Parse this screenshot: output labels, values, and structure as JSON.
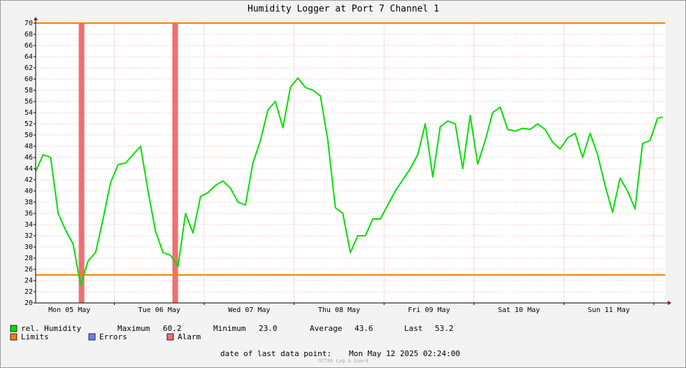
{
  "chart_data": {
    "type": "line",
    "title": "Humidity Logger at Port 7 Channel 1",
    "x": [
      0,
      2,
      4,
      6,
      8,
      10,
      12,
      14,
      16,
      18,
      20,
      22,
      24,
      26,
      28,
      30,
      32,
      34,
      36,
      38,
      40,
      42,
      44,
      46,
      48,
      50,
      52,
      54,
      56,
      58,
      60,
      62,
      64,
      66,
      68,
      70,
      72,
      74,
      76,
      78,
      80,
      82,
      84,
      86,
      88,
      90,
      92,
      94,
      96,
      98,
      100,
      102,
      104,
      106,
      108,
      110,
      112,
      114,
      116,
      118,
      120,
      122,
      124,
      126,
      128,
      130,
      132,
      134,
      136,
      138,
      140,
      142,
      144,
      146,
      148,
      150,
      152,
      154,
      156,
      158,
      160,
      162,
      164,
      166,
      167.4
    ],
    "series": [
      {
        "name": "rel. Humidity",
        "color": "#00e000",
        "values": [
          43.5,
          46.5,
          46,
          36,
          33,
          30.5,
          23.2,
          27.5,
          29,
          35,
          41.5,
          44.7,
          45,
          46.5,
          48,
          40,
          32.8,
          29,
          28.5,
          26.5,
          36,
          32.5,
          39,
          39.7,
          41,
          41.8,
          40.5,
          38,
          37.5,
          45,
          49,
          54.5,
          56,
          51.3,
          58.5,
          60.2,
          58.5,
          58,
          57,
          49,
          37,
          36,
          29,
          32,
          32,
          35,
          35,
          37.5,
          40,
          42,
          44,
          46.5,
          52,
          42.5,
          51.5,
          52.5,
          52,
          44,
          53.5,
          44.8,
          49,
          54,
          55,
          51,
          50.7,
          51.2,
          51,
          52,
          51,
          48.7,
          47.5,
          49.5,
          50.3,
          46,
          50.3,
          46.5,
          41,
          36.2,
          42.3,
          40,
          36.8,
          48.5,
          49,
          53,
          53.2
        ]
      }
    ],
    "xlim": [
      0,
      168
    ],
    "xticks": [
      {
        "value": 9,
        "label": "Mon 05 May"
      },
      {
        "value": 33,
        "label": "Tue 06 May"
      },
      {
        "value": 57,
        "label": "Wed 07 May"
      },
      {
        "value": 81,
        "label": "Thu 08 May"
      },
      {
        "value": 105,
        "label": "Fri 09 May"
      },
      {
        "value": 129,
        "label": "Sat 10 May"
      },
      {
        "value": 153,
        "label": "Sun 11 May"
      }
    ],
    "xgrid": [
      21,
      45,
      69,
      93,
      117,
      141,
      165
    ],
    "ylim": [
      20,
      70
    ],
    "yticks": [
      20,
      22,
      24,
      26,
      28,
      30,
      32,
      34,
      36,
      38,
      40,
      42,
      44,
      46,
      48,
      50,
      52,
      54,
      56,
      58,
      60,
      62,
      64,
      66,
      68,
      70
    ],
    "grid": true,
    "limits": {
      "name": "Limits",
      "color": "#ff7f00",
      "values": [
        70,
        25
      ]
    },
    "errors": {
      "name": "Errors",
      "color": "#7080f0"
    },
    "alarm": {
      "name": "Alarm",
      "color": "#f07070",
      "spans": [
        [
          11.5,
          13
        ],
        [
          36.5,
          38
        ]
      ]
    },
    "stats": [
      {
        "label": "Maximum",
        "value": "60.2"
      },
      {
        "label": "Minimum",
        "value": "23.0"
      },
      {
        "label": "Average",
        "value": "43.6"
      },
      {
        "label": "Last",
        "value": "53.2"
      }
    ],
    "footer": {
      "label": "date of last data point:",
      "value": "Mon May 12 2025 02:24:00"
    },
    "watermark": "OCTA8 Log & Guard"
  }
}
